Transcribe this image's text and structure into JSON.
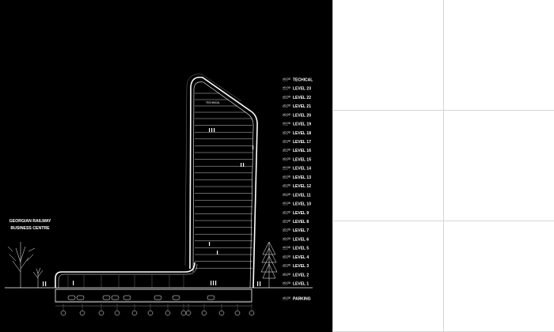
{
  "project": {
    "title_line1": "GEORGIAN RAILWAY",
    "title_line2": "BUSINESS CENTRE"
  },
  "room_label": "TECHNICAL",
  "level_marker": "±0.00",
  "levels": [
    "TECHICAL",
    "LEVEL 23",
    "LEVEL 22",
    "LEVEL 21",
    "LEVEL 20",
    "LEVEL 19",
    "LEVEL 18",
    "LEVEL 17",
    "LEVEL 16",
    "LEVEL 15",
    "LEVEL 14",
    "LEVEL 13",
    "LEVEL 12",
    "LEVEL 11",
    "LEVEL 10",
    "LEVEL 9",
    "LEVEL 8",
    "LEVEL 7",
    "LEVEL 6",
    "LEVEL 5",
    "LEVEL 4",
    "LEVEL 3",
    "LEVEL 2",
    "LEVEL 1",
    "PARKING"
  ],
  "colors": {
    "background": "#000000",
    "line": "#ffffff",
    "panel": "#ffffff",
    "grid": "#d6d6d6"
  }
}
